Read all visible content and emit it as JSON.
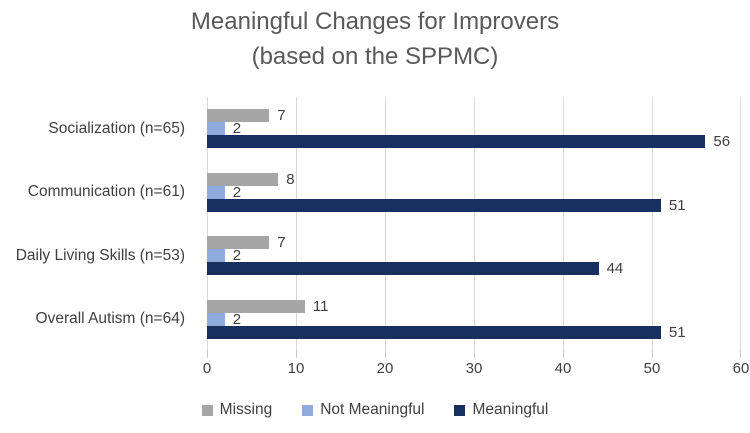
{
  "title": {
    "line1": "Meaningful Changes for Improvers",
    "line2": "(based on the SPPMC)"
  },
  "chart_data": {
    "type": "bar",
    "orientation": "horizontal",
    "title": "Meaningful Changes for Improvers (based on the SPPMC)",
    "categories": [
      "Socialization (n=65)",
      "Communication (n=61)",
      "Daily Living Skills (n=53)",
      "Overall Autism (n=64)"
    ],
    "series": [
      {
        "name": "Missing",
        "color": "#a6a6a6",
        "values": [
          7,
          8,
          7,
          11
        ]
      },
      {
        "name": "Not Meaningful",
        "color": "#8faadc",
        "values": [
          2,
          2,
          2,
          2
        ]
      },
      {
        "name": "Meaningful",
        "color": "#17305f",
        "values": [
          56,
          51,
          44,
          51
        ]
      }
    ],
    "xlabel": "",
    "ylabel": "",
    "xlim": [
      0,
      60
    ],
    "x_ticks": [
      "0",
      "10",
      "20",
      "30",
      "40",
      "50",
      "60"
    ],
    "grid": "vertical-gridlines-on",
    "legend_position": "bottom",
    "colors": {
      "title_text": "#595959",
      "axis_text": "#404040",
      "gridline": "#d9d9d9"
    }
  }
}
